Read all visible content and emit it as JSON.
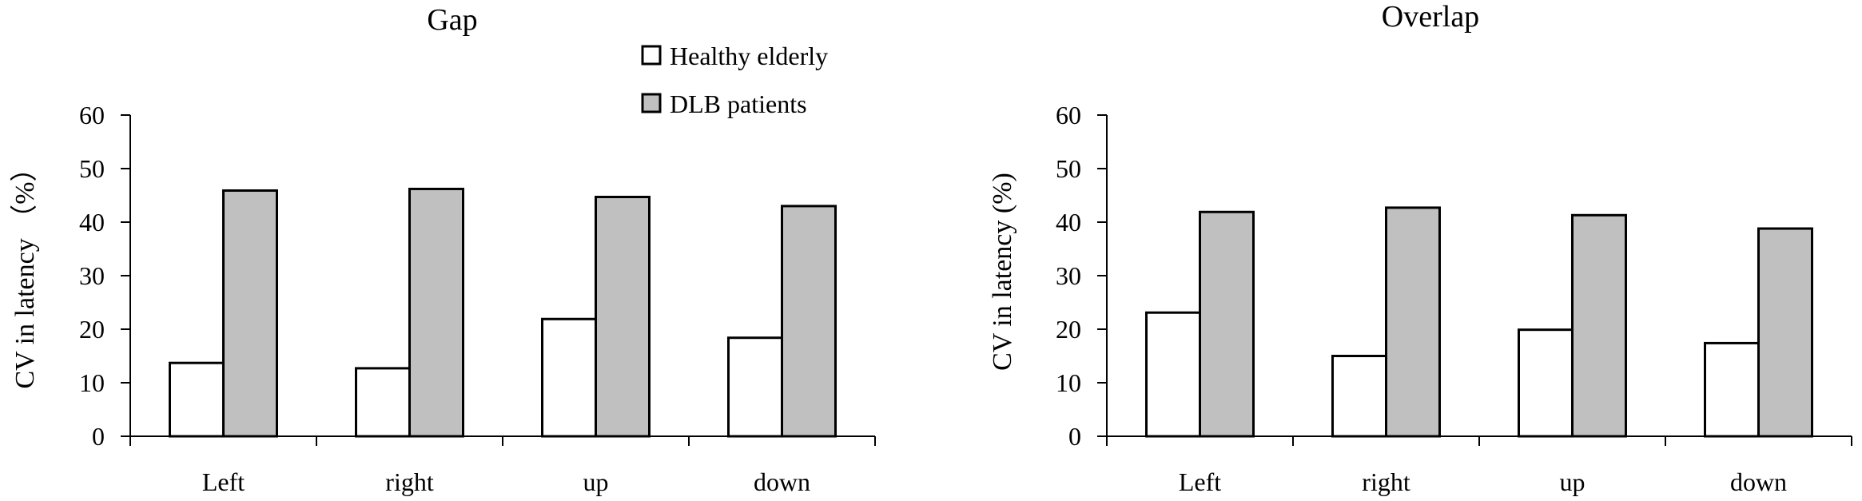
{
  "colors": {
    "healthy": "#ffffff",
    "dlb": "#c0c0c0",
    "stroke": "#000000"
  },
  "legend": {
    "items": [
      {
        "label": "Healthy elderly",
        "color": "#ffffff"
      },
      {
        "label": "DLB patients",
        "color": "#c0c0c0"
      }
    ],
    "placement": "top-right of left chart"
  },
  "chart_data": [
    {
      "type": "bar",
      "title": "Gap",
      "xlabel": "",
      "ylabel": "CV in latency （%）",
      "ylim": [
        0,
        60
      ],
      "yticks": [
        0,
        10,
        20,
        30,
        40,
        50,
        60
      ],
      "categories": [
        "Left",
        "right",
        "up",
        "down"
      ],
      "series": [
        {
          "name": "Healthy elderly",
          "values": [
            13.7,
            12.7,
            21.9,
            18.4
          ]
        },
        {
          "name": "DLB patients",
          "values": [
            45.9,
            46.2,
            44.7,
            43.0
          ]
        }
      ],
      "grid": false
    },
    {
      "type": "bar",
      "title": "Overlap",
      "xlabel": "",
      "ylabel": "CV in latency (%)",
      "ylim": [
        0,
        60
      ],
      "yticks": [
        0,
        10,
        20,
        30,
        40,
        50,
        60
      ],
      "categories": [
        "Left",
        "right",
        "up",
        "down"
      ],
      "series": [
        {
          "name": "Healthy elderly",
          "values": [
            23.1,
            15.0,
            19.9,
            17.4
          ]
        },
        {
          "name": "DLB patients",
          "values": [
            41.9,
            42.7,
            41.3,
            38.8
          ]
        }
      ],
      "grid": false
    }
  ]
}
